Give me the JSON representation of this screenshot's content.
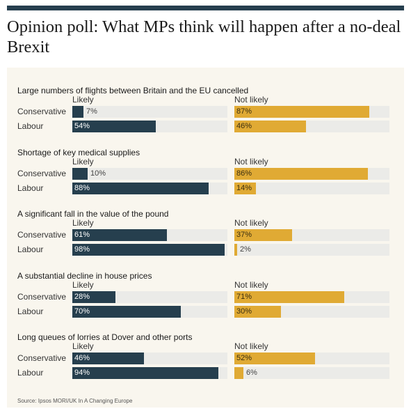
{
  "header": {
    "title": "Opinion poll: What MPs think will happen after a no-deal Brexit"
  },
  "source": "Source: Ipsos MORI/UK In A Changing Europe",
  "colors": {
    "likely": "#263f4e",
    "not_likely": "#e0aa34",
    "track": "#ebebe8",
    "panel": "#f9f6ee"
  },
  "chart_data": {
    "type": "bar",
    "orientation": "horizontal",
    "value_unit": "%",
    "xlim": [
      0,
      100
    ],
    "column_labels": [
      "Likely",
      "Not likely"
    ],
    "categories": [
      "Conservative",
      "Labour"
    ],
    "panels": [
      {
        "title": "Large numbers of flights between Britain and the EU cancelled",
        "series": [
          {
            "name": "Likely",
            "values": [
              7,
              54
            ],
            "labels": [
              "7%",
              "54%"
            ]
          },
          {
            "name": "Not likely",
            "values": [
              87,
              46
            ],
            "labels": [
              "87%",
              "46%"
            ]
          }
        ]
      },
      {
        "title": "Shortage of key medical supplies",
        "series": [
          {
            "name": "Likely",
            "values": [
              10,
              88
            ],
            "labels": [
              "10%",
              "88%"
            ]
          },
          {
            "name": "Not likely",
            "values": [
              86,
              14
            ],
            "labels": [
              "86%",
              "14%"
            ]
          }
        ]
      },
      {
        "title": "A significant fall in the value of the pound",
        "series": [
          {
            "name": "Likely",
            "values": [
              61,
              98
            ],
            "labels": [
              "61%",
              "98%"
            ]
          },
          {
            "name": "Not likely",
            "values": [
              37,
              2
            ],
            "labels": [
              "37%",
              "2%"
            ]
          }
        ]
      },
      {
        "title": "A substantial decline in house prices",
        "series": [
          {
            "name": "Likely",
            "values": [
              28,
              70
            ],
            "labels": [
              "28%",
              "70%"
            ]
          },
          {
            "name": "Not likely",
            "values": [
              71,
              30
            ],
            "labels": [
              "71%",
              "30%"
            ]
          }
        ]
      },
      {
        "title": "Long queues of lorries at Dover and other ports",
        "series": [
          {
            "name": "Likely",
            "values": [
              46,
              94
            ],
            "labels": [
              "46%",
              "94%"
            ]
          },
          {
            "name": "Not likely",
            "values": [
              52,
              6
            ],
            "labels": [
              "52%",
              "6%"
            ]
          }
        ]
      }
    ]
  }
}
